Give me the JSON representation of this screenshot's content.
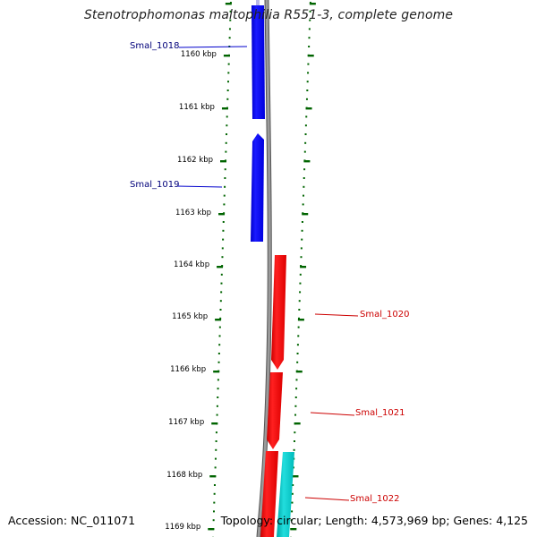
{
  "title": "Stenotrophomonas maltophilia R551-3, complete genome",
  "accession_label": "Accession:",
  "accession": "NC_011071",
  "topology_text": "Topology: circular; Length: 4,573,969 bp; Genes: 4,125",
  "ticks": [
    "1160 kbp",
    "1161 kbp",
    "1162 kbp",
    "1163 kbp",
    "1164 kbp",
    "1165 kbp",
    "1166 kbp",
    "1167 kbp",
    "1168 kbp",
    "1169 kbp"
  ],
  "genes": [
    {
      "label": "Smal_1018",
      "color": "#0000ff",
      "label_color": "#00007a"
    },
    {
      "label": "Smal_1019",
      "color": "#0000ff",
      "label_color": "#00007a"
    },
    {
      "label": "Smal_1020",
      "color": "#ff0000",
      "label_color": "#cc0000"
    },
    {
      "label": "Smal_1021",
      "color": "#ff0000",
      "label_color": "#cc0000"
    },
    {
      "label": "Smal_1022",
      "color": "#ff0000",
      "label_color": "#cc0000"
    }
  ],
  "colors": {
    "backbone": "#808080",
    "gc_ticks": "#006400",
    "forward_strand": "#ff0000",
    "reverse_strand": "#0000ff",
    "other_feature": "#00cccc"
  }
}
